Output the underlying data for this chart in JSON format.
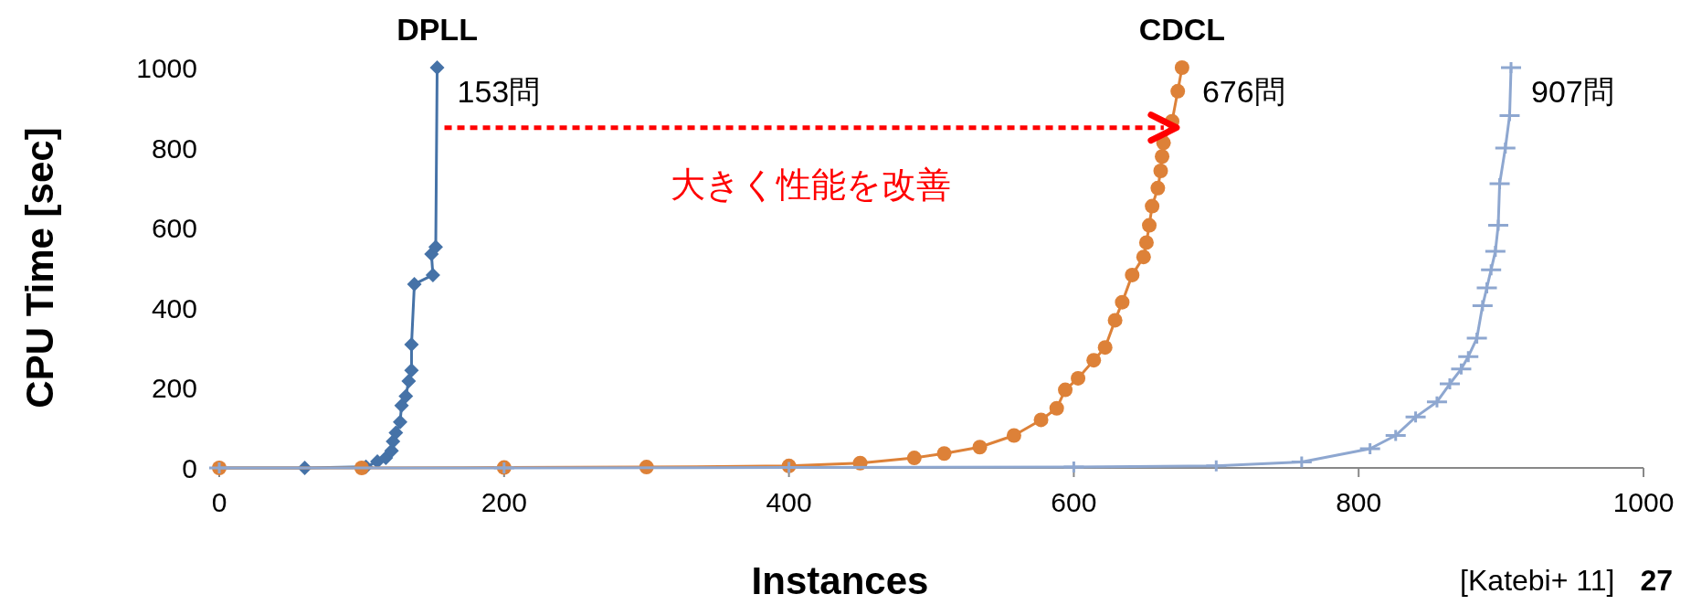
{
  "chart_data": {
    "type": "line",
    "xlabel": "Instances",
    "ylabel": "CPU Time [sec]",
    "xlim": [
      0,
      1000
    ],
    "ylim": [
      0,
      1000
    ],
    "xticks": [
      0,
      200,
      400,
      600,
      800,
      1000
    ],
    "yticks": [
      0,
      200,
      400,
      600,
      800,
      1000
    ],
    "grid": false,
    "legend": false,
    "line_style": "solid",
    "series": [
      {
        "name": "DPLL",
        "color": "#4572a7",
        "marker": "diamond",
        "x": [
          0,
          60,
          103,
          111,
          117,
          121,
          122,
          124,
          127,
          128,
          131,
          133,
          135,
          135,
          137,
          150,
          149,
          152,
          153
        ],
        "values": [
          0,
          0,
          3,
          16,
          25,
          43,
          66,
          88,
          115,
          156,
          179,
          217,
          244,
          308,
          459,
          482,
          534,
          552,
          1000
        ]
      },
      {
        "name": "CDCL",
        "color": "#dd8138",
        "marker": "circle",
        "x": [
          0,
          100,
          200,
          300,
          400,
          450,
          488,
          509,
          534,
          558,
          577,
          588,
          594,
          603,
          614,
          622,
          629,
          634,
          641,
          649,
          651,
          653,
          655,
          659,
          661,
          662,
          663,
          669,
          673,
          676
        ],
        "values": [
          0,
          0,
          1,
          2,
          5,
          12,
          25,
          36,
          52,
          81,
          120,
          149,
          195,
          224,
          269,
          301,
          369,
          414,
          482,
          527,
          563,
          606,
          654,
          699,
          742,
          778,
          812,
          866,
          941,
          1000
        ]
      },
      {
        "color": "#8ea7d0",
        "marker": "cross",
        "x": [
          0,
          200,
          400,
          600,
          700,
          760,
          808,
          826,
          840,
          855,
          864,
          872,
          877,
          883,
          887,
          890,
          893,
          896,
          898,
          899,
          903,
          906,
          907
        ],
        "values": [
          0,
          0,
          1,
          2,
          5,
          15,
          48,
          81,
          127,
          165,
          210,
          247,
          278,
          324,
          405,
          450,
          495,
          541,
          606,
          710,
          799,
          880,
          1000
        ]
      }
    ],
    "annotations": [
      {
        "text": "153問",
        "x": 153,
        "y": 1000
      },
      {
        "text": "676問",
        "x": 676,
        "y": 1000
      },
      {
        "text": "907問",
        "x": 907,
        "y": 1000
      },
      "大きく性能を改善",
      "[Katebi+ 11]",
      "27"
    ]
  }
}
